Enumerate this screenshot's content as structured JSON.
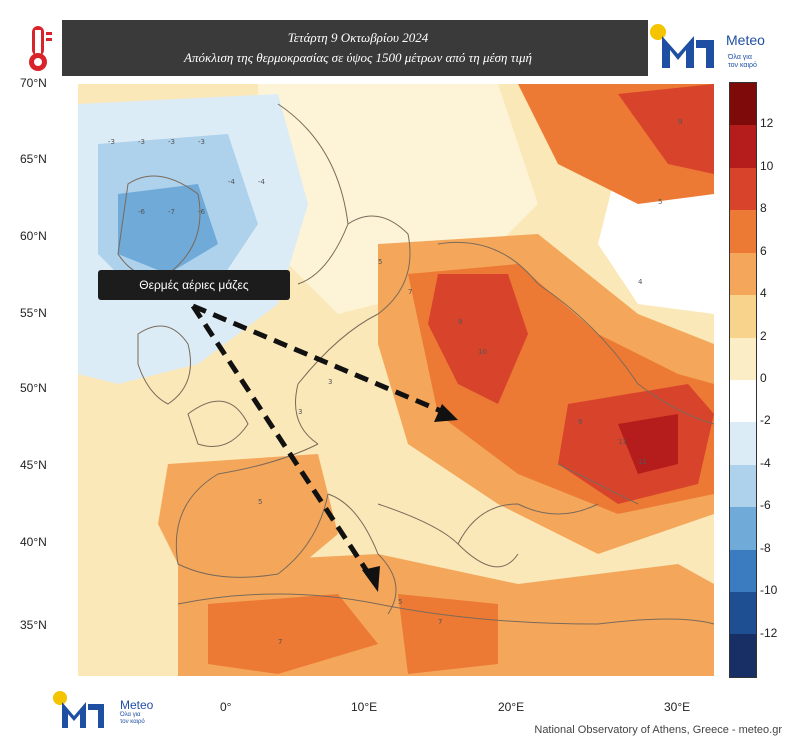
{
  "header": {
    "title_line1": "Τετάρτη 9 Οκτωβρίου 2024",
    "title_line2": "Απόκλιση της θερμοκρασίας σε ύψος 1500 μέτρων από τη μέση τιμή",
    "logo_name": "Meteo",
    "logo_slogan_1": "Όλα για",
    "logo_slogan_2": "τον καιρό"
  },
  "map": {
    "latitudes": [
      "70°N",
      "65°N",
      "60°N",
      "55°N",
      "50°N",
      "45°N",
      "40°N",
      "35°N"
    ],
    "longitudes": [
      "0°",
      "10°E",
      "20°E",
      "30°E"
    ],
    "callout": "Θερμές αέριες μάζες",
    "colors": {
      "land_border": "#7a6a5a",
      "arrow": "#111111"
    }
  },
  "colorbar": {
    "labels": [
      "12",
      "10",
      "8",
      "6",
      "4",
      "2",
      "0",
      "-2",
      "-4",
      "-6",
      "-8",
      "-10",
      "-12"
    ],
    "colors": [
      "#7f0a0a",
      "#b51c1c",
      "#d8432c",
      "#ec7a35",
      "#f4a75a",
      "#f8d38c",
      "#fbedc5",
      "#ffffff",
      "#dcecf7",
      "#aed1ec",
      "#6faad8",
      "#3b7bbf",
      "#1f4f93",
      "#182f66"
    ]
  },
  "footer": {
    "logo_name": "Meteo",
    "logo_slogan_1": "Όλα για",
    "logo_slogan_2": "τον καιρό",
    "credit": "National Observatory of Athens, Greece - meteo.gr"
  }
}
